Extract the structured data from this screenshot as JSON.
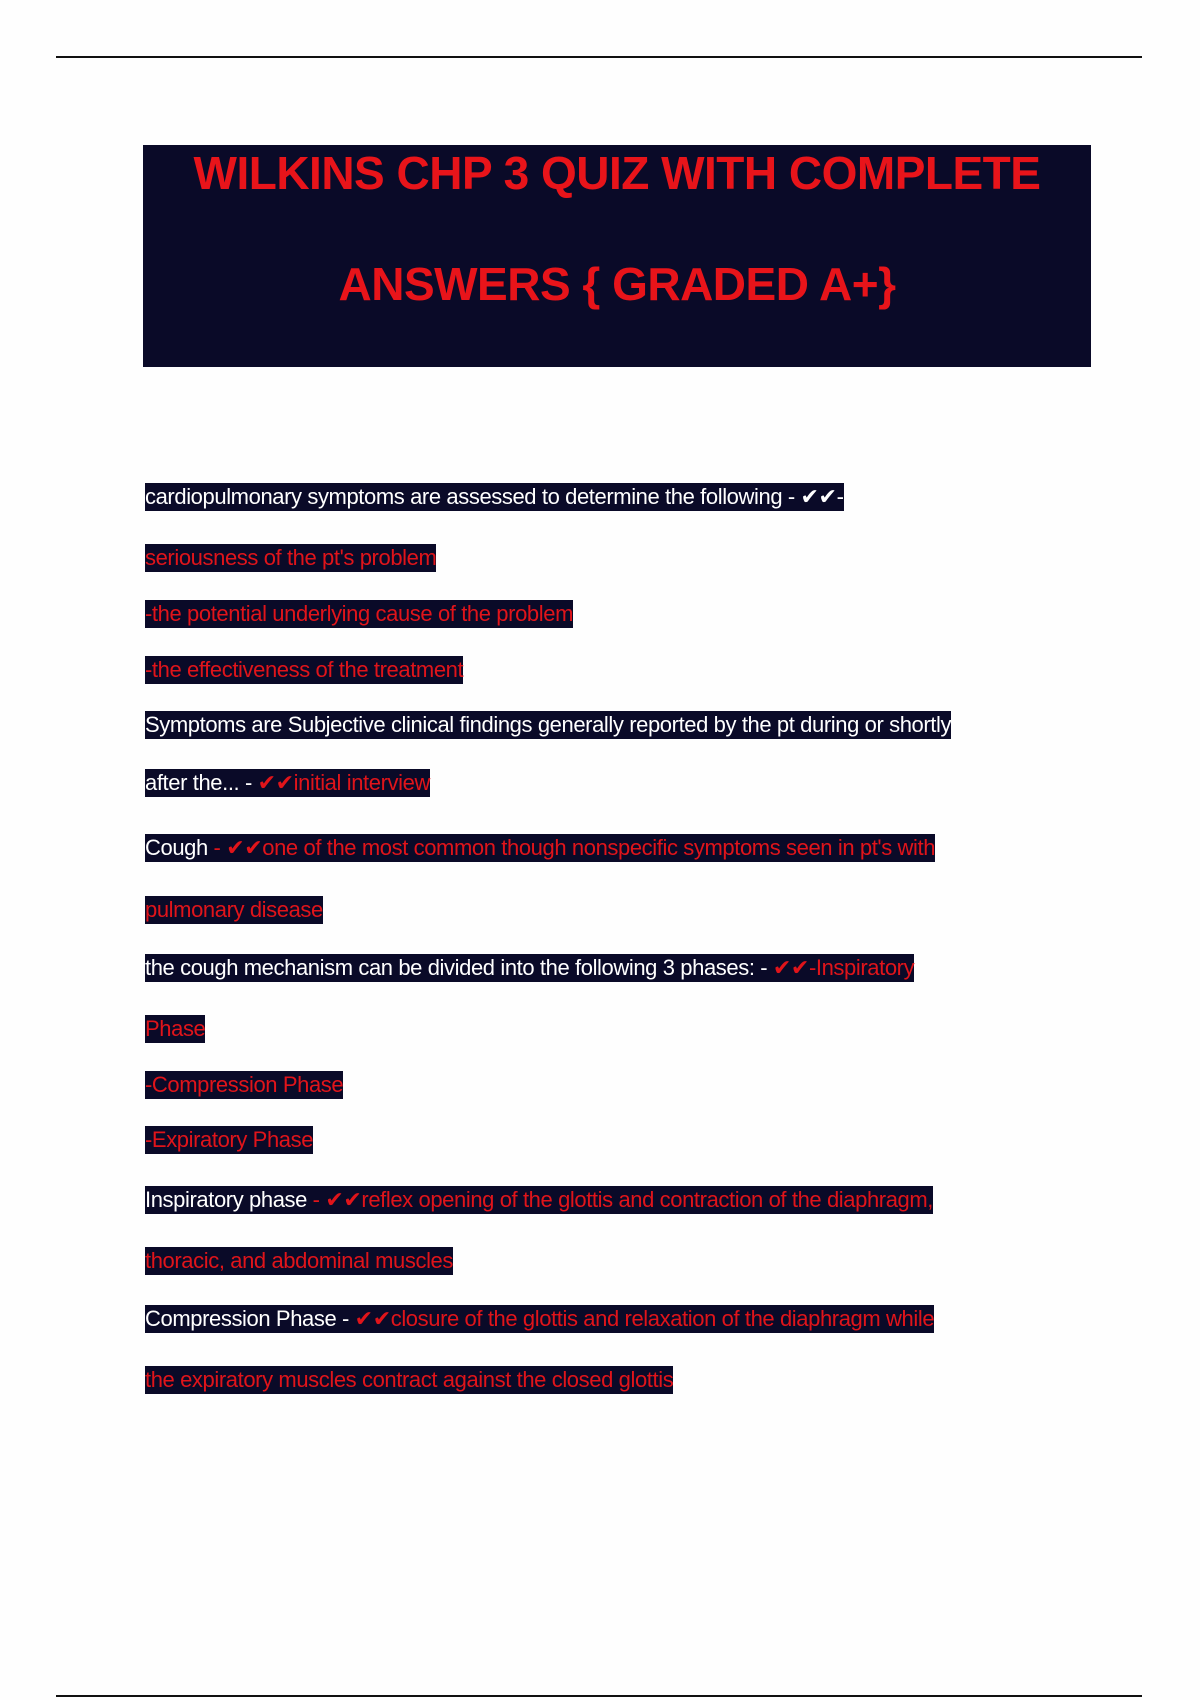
{
  "title": {
    "line1": "WILKINS CHP 3 QUIZ WITH COMPLETE",
    "line2": "ANSWERS { GRADED A+}"
  },
  "colors": {
    "highlight": "#0a0a28",
    "question_text": "#ffffff",
    "answer_text": "#e0141a",
    "title_text": "#e8141a"
  },
  "lines": [
    [
      {
        "t": "cardiopulmonary symptoms are assessed to determine the following - ✔✔-",
        "c": "w"
      }
    ],
    [
      {
        "t": "seriousness of the pt's problem",
        "c": "r"
      }
    ],
    [
      {
        "t": "-the potential underlying cause of the problem",
        "c": "r"
      }
    ],
    [
      {
        "t": "-the effectiveness of the treatment",
        "c": "r"
      }
    ],
    [
      {
        "t": "Symptoms are Subjective clinical findings generally reported by the pt during or shortly",
        "c": "w"
      }
    ],
    [
      {
        "t": "after the... - ",
        "c": "w"
      },
      {
        "t": "✔✔initial interview",
        "c": "r"
      }
    ],
    [
      {
        "t": "Cough",
        "c": "w"
      },
      {
        "t": " - ✔✔one of the most common though nonspecific symptoms seen in pt's with",
        "c": "r"
      }
    ],
    [
      {
        "t": "pulmonary disease",
        "c": "r"
      }
    ],
    [
      {
        "t": "the cough mechanism can be divided into the following 3 phases: - ",
        "c": "w"
      },
      {
        "t": "✔✔-Inspiratory",
        "c": "r"
      }
    ],
    [
      {
        "t": "Phase",
        "c": "r"
      }
    ],
    [
      {
        "t": "-Compression Phase",
        "c": "r"
      }
    ],
    [
      {
        "t": "-Expiratory Phase",
        "c": "r"
      }
    ],
    [
      {
        "t": "Inspiratory phase",
        "c": "w"
      },
      {
        "t": " - ✔✔reflex opening of the glottis and contraction of the diaphragm,",
        "c": "r"
      }
    ],
    [
      {
        "t": "thoracic, and abdominal muscles",
        "c": "r"
      }
    ],
    [
      {
        "t": "Compression Phase - ",
        "c": "w"
      },
      {
        "t": "✔✔closure of the glottis and relaxation of the diaphragm while",
        "c": "r"
      }
    ],
    [
      {
        "t": "the expiratory muscles contract against the closed glottis",
        "c": "r"
      }
    ]
  ]
}
